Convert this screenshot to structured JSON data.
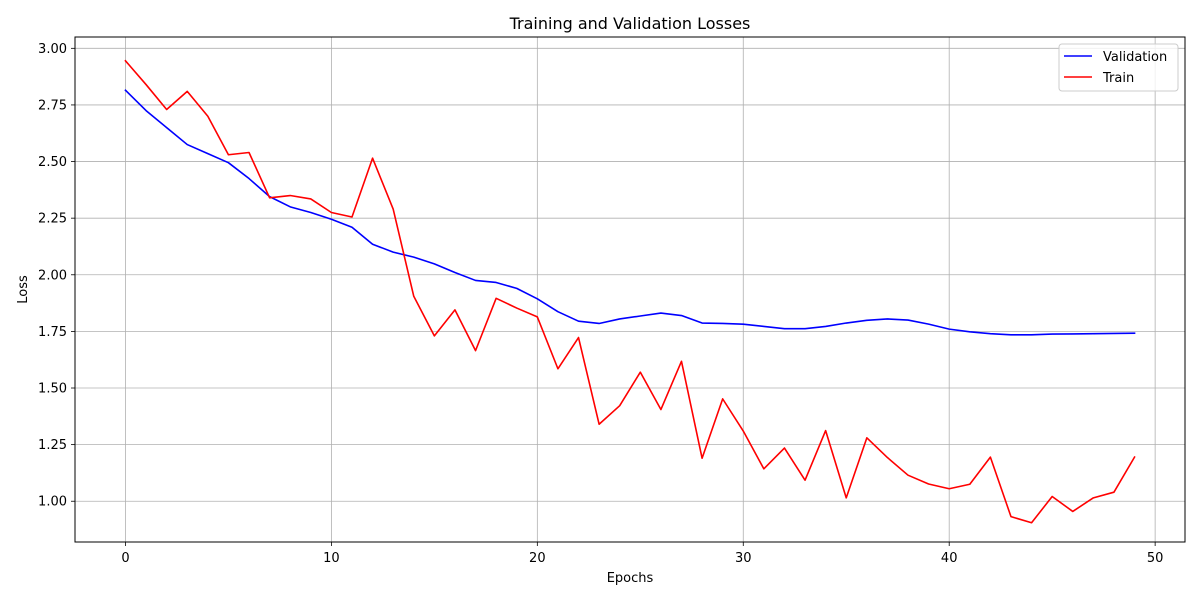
{
  "chart_data": {
    "type": "line",
    "title": "Training and Validation Losses",
    "xlabel": "Epochs",
    "ylabel": "Loss",
    "xlim": [
      -2.45,
      51.45
    ],
    "ylim": [
      0.82,
      3.05
    ],
    "xticks": [
      0,
      10,
      20,
      30,
      40,
      50
    ],
    "yticks": [
      1.0,
      1.25,
      1.5,
      1.75,
      2.0,
      2.25,
      2.5,
      2.75,
      3.0
    ],
    "ytick_labels": [
      "1.00",
      "1.25",
      "1.50",
      "1.75",
      "2.00",
      "2.25",
      "2.50",
      "2.75",
      "3.00"
    ],
    "xtick_labels": [
      "0",
      "10",
      "20",
      "30",
      "40",
      "50"
    ],
    "grid": true,
    "legend_position": "top-right",
    "x": [
      0,
      1,
      2,
      3,
      4,
      5,
      6,
      7,
      8,
      9,
      10,
      11,
      12,
      13,
      14,
      15,
      16,
      17,
      18,
      19,
      20,
      21,
      22,
      23,
      24,
      25,
      26,
      27,
      28,
      29,
      30,
      31,
      32,
      33,
      34,
      35,
      36,
      37,
      38,
      39,
      40,
      41,
      42,
      43,
      44,
      45,
      46,
      47,
      48,
      49
    ],
    "series": [
      {
        "name": "Validation",
        "color": "#0000ff",
        "values": [
          2.815,
          2.725,
          2.65,
          2.575,
          2.535,
          2.495,
          2.425,
          2.345,
          2.3,
          2.275,
          2.245,
          2.21,
          2.135,
          2.1,
          2.078,
          2.048,
          2.01,
          1.975,
          1.966,
          1.94,
          1.894,
          1.837,
          1.795,
          1.785,
          1.805,
          1.818,
          1.831,
          1.82,
          1.787,
          1.785,
          1.782,
          1.772,
          1.762,
          1.762,
          1.772,
          1.787,
          1.799,
          1.805,
          1.8,
          1.782,
          1.76,
          1.748,
          1.74,
          1.735,
          1.735,
          1.738,
          1.739,
          1.74,
          1.741,
          1.742
        ]
      },
      {
        "name": "Train",
        "color": "#ff0000",
        "values": [
          2.945,
          2.84,
          2.73,
          2.81,
          2.7,
          2.53,
          2.54,
          2.34,
          2.35,
          2.335,
          2.275,
          2.255,
          2.515,
          2.29,
          1.905,
          1.73,
          1.845,
          1.665,
          1.896,
          1.853,
          1.814,
          1.585,
          1.723,
          1.34,
          1.422,
          1.57,
          1.405,
          1.618,
          1.19,
          1.452,
          1.31,
          1.143,
          1.235,
          1.093,
          1.312,
          1.015,
          1.28,
          1.193,
          1.115,
          1.076,
          1.055,
          1.075,
          1.195,
          0.932,
          0.905,
          1.021,
          0.955,
          1.015,
          1.04,
          1.195
        ]
      }
    ]
  }
}
